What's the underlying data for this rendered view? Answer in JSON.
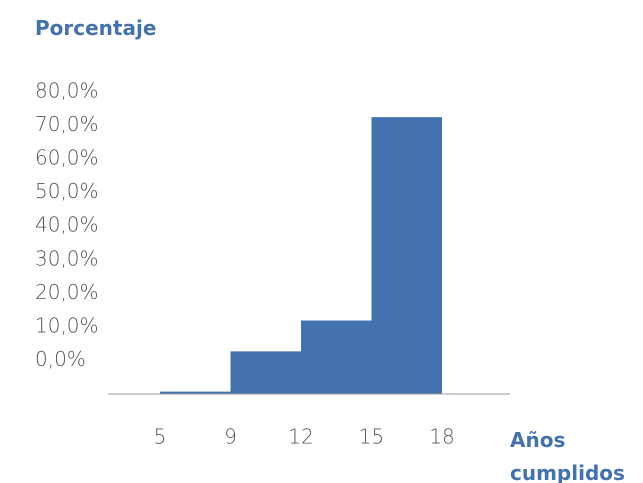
{
  "chart_data": {
    "type": "histogram",
    "y_label": "Porcentaje",
    "x_label": "Años cumplidos",
    "bins": [
      "5",
      "9",
      "12",
      "15",
      "18"
    ],
    "values": [
      -9.3,
      2.7,
      11.9,
      72.5
    ],
    "color": "#4472ae",
    "ylim": [
      -10,
      80
    ],
    "yticks": [
      {
        "value": 0,
        "label": "0,0%"
      },
      {
        "value": 10,
        "label": "10,0%"
      },
      {
        "value": 20,
        "label": "20,0%"
      },
      {
        "value": 30,
        "label": "30,0%"
      },
      {
        "value": 40,
        "label": "40,0%"
      },
      {
        "value": 50,
        "label": "50,0%"
      },
      {
        "value": 60,
        "label": "60,0%"
      },
      {
        "value": 70,
        "label": "70,0%"
      },
      {
        "value": 80,
        "label": "80,0%"
      }
    ],
    "grid": false
  }
}
